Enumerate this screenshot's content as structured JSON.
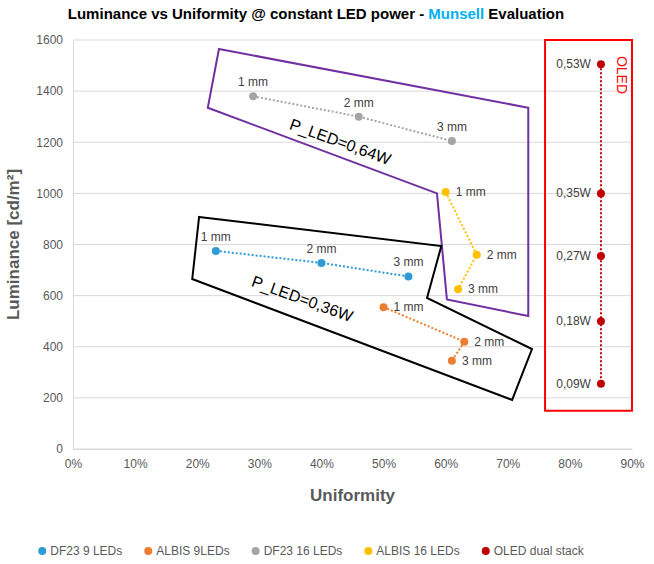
{
  "chart_data": {
    "type": "scatter",
    "title": [
      "Luminance vs Uniformity @ constant LED power - ",
      "Munsell",
      " Evaluation"
    ],
    "x_label": "Uniformity",
    "y_label": "Luminance [cd/m²]",
    "xlim": [
      0,
      90
    ],
    "xticks": [
      {
        "value": 0,
        "label": "0%"
      },
      {
        "value": 10,
        "label": "10%"
      },
      {
        "value": 20,
        "label": "20%"
      },
      {
        "value": 30,
        "label": "30%"
      },
      {
        "value": 40,
        "label": "40%"
      },
      {
        "value": 50,
        "label": "50%"
      },
      {
        "value": 60,
        "label": "60%"
      },
      {
        "value": 70,
        "label": "70%"
      },
      {
        "value": 80,
        "label": "80%"
      },
      {
        "value": 90,
        "label": "90%"
      }
    ],
    "ylim": [
      0,
      1600
    ],
    "yticks": [
      0,
      200,
      400,
      600,
      800,
      1000,
      1200,
      1400,
      1600
    ],
    "grid": "y",
    "legend": "bottom",
    "series": [
      {
        "name": "DF23 9 LEDs",
        "color": "#2E9BD6",
        "marker": "circle",
        "line_style": "dotted",
        "x": [
          23,
          40,
          54
        ],
        "values": [
          775,
          728,
          675
        ],
        "labels": [
          "1 mm",
          "2 mm",
          "3 mm"
        ]
      },
      {
        "name": "ALBIS 9LEDs",
        "color": "#ED7D31",
        "marker": "circle",
        "line_style": "dotted",
        "x": [
          50,
          63,
          61
        ],
        "values": [
          555,
          420,
          345
        ],
        "labels": [
          "1 mm",
          "2 mm",
          "3 mm"
        ]
      },
      {
        "name": "DF23 16 LEDs",
        "color": "#A5A5A5",
        "marker": "circle",
        "line_style": "dotted",
        "x": [
          29,
          46,
          61
        ],
        "values": [
          1380,
          1300,
          1205
        ],
        "labels": [
          "1 mm",
          "2 mm",
          "3 mm"
        ]
      },
      {
        "name": "ALBIS 16 LEDs",
        "color": "#FFC000",
        "marker": "circle",
        "line_style": "dotted",
        "x": [
          60,
          65,
          62
        ],
        "values": [
          1005,
          760,
          625
        ],
        "labels": [
          "1 mm",
          "2 mm",
          "3 mm"
        ]
      },
      {
        "name": "OLED dual stack",
        "color": "#C00000",
        "marker": "circle",
        "line_style": "dotted",
        "x": [
          85,
          85,
          85,
          85,
          85
        ],
        "values": [
          1505,
          1000,
          755,
          500,
          255
        ],
        "labels": [
          "0,53W",
          "0,35W",
          "0,27W",
          "0,18W",
          "0,09W"
        ]
      }
    ],
    "regions": [
      {
        "label": "P_LED=0,64W",
        "color": "#7030A0",
        "points": [
          [
            23.5,
            1565
          ],
          [
            73.3,
            1335
          ],
          [
            73.3,
            520
          ],
          [
            60.2,
            585
          ],
          [
            58.6,
            1000
          ],
          [
            21.7,
            1335
          ]
        ]
      },
      {
        "label": "P_LED=0,36W",
        "color": "#000000",
        "points": [
          [
            20.3,
            908
          ],
          [
            59.3,
            794
          ],
          [
            57,
            591
          ],
          [
            73.9,
            391
          ],
          [
            70.7,
            192
          ],
          [
            19.2,
            665
          ]
        ]
      },
      {
        "label": "OLED",
        "color": "#FF0000",
        "points": [
          [
            76,
            1600
          ],
          [
            90,
            1600
          ],
          [
            90,
            150
          ],
          [
            76,
            150
          ]
        ]
      }
    ]
  }
}
